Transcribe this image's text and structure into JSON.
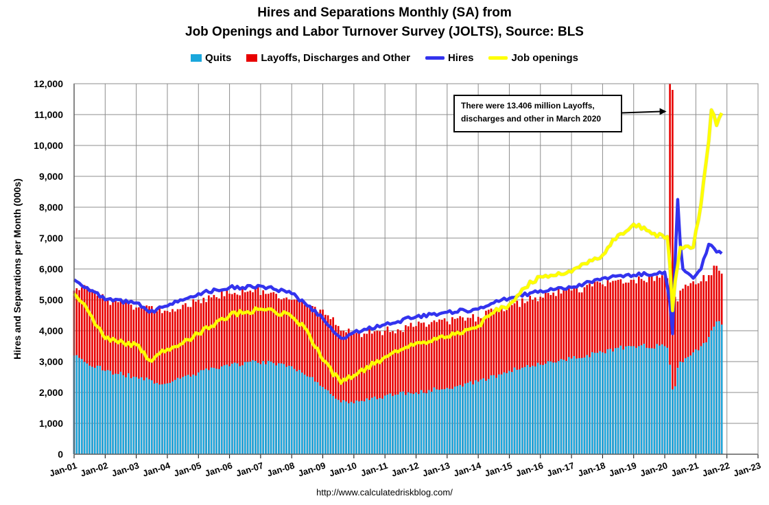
{
  "chart_data": {
    "type": "bar",
    "title": "Hires and Separations Monthly (SA) from",
    "subtitle": "Job Openings and Labor Turnover Survey (JOLTS), Source: BLS",
    "ylabel": "Hires and Separations per Month (000s)",
    "xlabel": "",
    "ylim": [
      0,
      12000
    ],
    "yticks": [
      "0",
      "1,000",
      "2,000",
      "3,000",
      "4,000",
      "5,000",
      "6,000",
      "7,000",
      "8,000",
      "9,000",
      "10,000",
      "11,000",
      "12,000"
    ],
    "xticks": [
      "Jan-01",
      "Jan-02",
      "Jan-03",
      "Jan-04",
      "Jan-05",
      "Jan-06",
      "Jan-07",
      "Jan-08",
      "Jan-09",
      "Jan-10",
      "Jan-11",
      "Jan-12",
      "Jan-13",
      "Jan-14",
      "Jan-15",
      "Jan-16",
      "Jan-17",
      "Jan-18",
      "Jan-19",
      "Jan-20",
      "Jan-21",
      "Jan-22",
      "Jan-23"
    ],
    "x_range": [
      "2001-01",
      "2023-01"
    ],
    "grid": true,
    "legend_position": "top",
    "stacked": true,
    "note": "Monthly data, annual anchor values per series (thousands); months between anchors follow the series trend",
    "series": [
      {
        "name": "Quits",
        "kind": "bar",
        "color": "#1aa7dc",
        "anchors": [
          [
            "2001-01",
            3200
          ],
          [
            "2002-01",
            2700
          ],
          [
            "2003-01",
            2500
          ],
          [
            "2003-12",
            2280
          ],
          [
            "2004-06",
            2450
          ],
          [
            "2005-01",
            2650
          ],
          [
            "2006-01",
            2850
          ],
          [
            "2006-09",
            3000
          ],
          [
            "2007-06",
            2950
          ],
          [
            "2008-01",
            2850
          ],
          [
            "2008-09",
            2500
          ],
          [
            "2009-06",
            1800
          ],
          [
            "2010-01",
            1650
          ],
          [
            "2011-01",
            1900
          ],
          [
            "2012-01",
            2000
          ],
          [
            "2013-01",
            2150
          ],
          [
            "2014-01",
            2350
          ],
          [
            "2015-01",
            2700
          ],
          [
            "2016-01",
            2900
          ],
          [
            "2017-01",
            3100
          ],
          [
            "2018-01",
            3300
          ],
          [
            "2018-07",
            3450
          ],
          [
            "2019-01",
            3500
          ],
          [
            "2020-01",
            3500
          ],
          [
            "2020-02",
            3450
          ],
          [
            "2020-03",
            2900
          ],
          [
            "2020-04",
            2100
          ],
          [
            "2020-05",
            2200
          ],
          [
            "2020-06",
            2800
          ],
          [
            "2020-07",
            3000
          ],
          [
            "2020-12",
            3300
          ],
          [
            "2021-03",
            3500
          ],
          [
            "2021-06",
            3800
          ],
          [
            "2021-09",
            4300
          ],
          [
            "2021-11",
            4200
          ]
        ]
      },
      {
        "name": "Layoffs, Discharges and Other",
        "kind": "bar",
        "color": "#e80000",
        "anchors": [
          [
            "2001-01",
            5300
          ],
          [
            "2001-04",
            5400
          ],
          [
            "2002-01",
            5000
          ],
          [
            "2003-01",
            4750
          ],
          [
            "2003-12",
            4650
          ],
          [
            "2004-06",
            4700
          ],
          [
            "2005-01",
            5000
          ],
          [
            "2006-01",
            5200
          ],
          [
            "2006-09",
            5300
          ],
          [
            "2007-06",
            5250
          ],
          [
            "2008-01",
            5000
          ],
          [
            "2008-09",
            4800
          ],
          [
            "2009-03",
            4500
          ],
          [
            "2009-08",
            4000
          ],
          [
            "2010-01",
            3900
          ],
          [
            "2011-01",
            4000
          ],
          [
            "2012-01",
            4150
          ],
          [
            "2013-01",
            4300
          ],
          [
            "2014-01",
            4450
          ],
          [
            "2015-01",
            4800
          ],
          [
            "2016-01",
            5100
          ],
          [
            "2017-01",
            5300
          ],
          [
            "2018-01",
            5500
          ],
          [
            "2019-01",
            5650
          ],
          [
            "2020-01",
            5750
          ],
          [
            "2020-02",
            5700
          ],
          [
            "2020-03",
            13406
          ],
          [
            "2020-04",
            11800
          ],
          [
            "2020-05",
            5100
          ],
          [
            "2020-06",
            4950
          ],
          [
            "2020-07",
            5300
          ],
          [
            "2020-12",
            5600
          ],
          [
            "2021-03",
            5600
          ],
          [
            "2021-06",
            5800
          ],
          [
            "2021-09",
            6100
          ],
          [
            "2021-11",
            5850
          ]
        ]
      },
      {
        "name": "Hires",
        "kind": "line",
        "color": "#3333ee",
        "anchors": [
          [
            "2001-01",
            5650
          ],
          [
            "2001-06",
            5400
          ],
          [
            "2002-01",
            5000
          ],
          [
            "2003-01",
            4900
          ],
          [
            "2003-06",
            4600
          ],
          [
            "2004-01",
            4800
          ],
          [
            "2004-06",
            5000
          ],
          [
            "2005-01",
            5200
          ],
          [
            "2006-01",
            5400
          ],
          [
            "2006-06",
            5400
          ],
          [
            "2007-01",
            5450
          ],
          [
            "2007-06",
            5350
          ],
          [
            "2008-01",
            5200
          ],
          [
            "2008-06",
            4900
          ],
          [
            "2009-01",
            4400
          ],
          [
            "2009-06",
            3900
          ],
          [
            "2009-09",
            3750
          ],
          [
            "2010-01",
            3950
          ],
          [
            "2011-01",
            4200
          ],
          [
            "2012-01",
            4450
          ],
          [
            "2013-01",
            4600
          ],
          [
            "2014-01",
            4700
          ],
          [
            "2014-09",
            4950
          ],
          [
            "2015-01",
            5050
          ],
          [
            "2016-01",
            5300
          ],
          [
            "2017-01",
            5400
          ],
          [
            "2018-01",
            5700
          ],
          [
            "2019-01",
            5800
          ],
          [
            "2020-01",
            5900
          ],
          [
            "2020-03",
            4900
          ],
          [
            "2020-04",
            3900
          ],
          [
            "2020-05",
            6300
          ],
          [
            "2020-06",
            8250
          ],
          [
            "2020-07",
            6800
          ],
          [
            "2020-08",
            6000
          ],
          [
            "2020-12",
            5700
          ],
          [
            "2021-01",
            5800
          ],
          [
            "2021-03",
            6000
          ],
          [
            "2021-06",
            6800
          ],
          [
            "2021-09",
            6550
          ],
          [
            "2021-11",
            6500
          ]
        ]
      },
      {
        "name": "Job openings",
        "kind": "line",
        "color": "#ffff00",
        "anchors": [
          [
            "2001-01",
            5200
          ],
          [
            "2001-06",
            4700
          ],
          [
            "2002-01",
            3750
          ],
          [
            "2003-01",
            3550
          ],
          [
            "2003-06",
            3050
          ],
          [
            "2004-01",
            3400
          ],
          [
            "2005-01",
            3900
          ],
          [
            "2005-06",
            4150
          ],
          [
            "2006-01",
            4500
          ],
          [
            "2007-01",
            4700
          ],
          [
            "2007-06",
            4650
          ],
          [
            "2008-01",
            4450
          ],
          [
            "2008-06",
            4100
          ],
          [
            "2009-01",
            3050
          ],
          [
            "2009-08",
            2300
          ],
          [
            "2010-01",
            2550
          ],
          [
            "2011-01",
            3150
          ],
          [
            "2012-01",
            3600
          ],
          [
            "2013-01",
            3800
          ],
          [
            "2014-01",
            4150
          ],
          [
            "2014-06",
            4550
          ],
          [
            "2015-01",
            4850
          ],
          [
            "2015-06",
            5350
          ],
          [
            "2016-01",
            5750
          ],
          [
            "2017-01",
            5900
          ],
          [
            "2018-01",
            6450
          ],
          [
            "2018-07",
            7100
          ],
          [
            "2019-01",
            7450
          ],
          [
            "2019-06",
            7250
          ],
          [
            "2020-01",
            7000
          ],
          [
            "2020-02",
            7050
          ],
          [
            "2020-03",
            6100
          ],
          [
            "2020-04",
            4650
          ],
          [
            "2020-05",
            5600
          ],
          [
            "2020-07",
            6700
          ],
          [
            "2020-12",
            6700
          ],
          [
            "2021-03",
            8100
          ],
          [
            "2021-06",
            10150
          ],
          [
            "2021-07",
            11150
          ],
          [
            "2021-09",
            10650
          ],
          [
            "2021-11",
            11050
          ]
        ]
      }
    ],
    "annotation": {
      "text_line1": "There were 13.406 million Layoffs,",
      "text_line2": "discharges and other in March 2020",
      "points_to": [
        "2020-03",
        11100
      ]
    }
  },
  "footer": "http://www.calculatedriskblog.com/"
}
